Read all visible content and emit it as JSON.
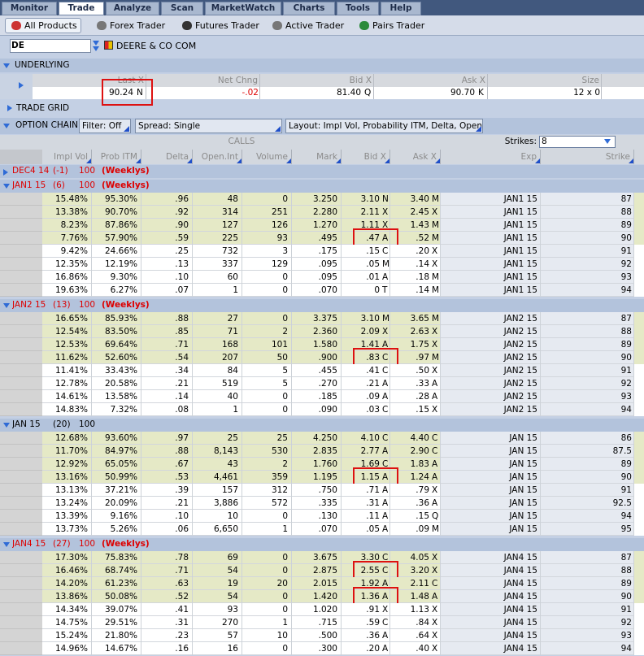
{
  "tabs": [
    "Monitor",
    "Trade",
    "Analyze",
    "Scan",
    "MarketWatch",
    "Charts",
    "Tools",
    "Help"
  ],
  "active_tab": 1,
  "toolbar": [
    "All Products",
    "Forex Trader",
    "Futures Trader",
    "Active Trader",
    "Pairs Trader"
  ],
  "symbol": "DE",
  "company": "DEERE & CO COM",
  "underlying": {
    "title": "UNDERLYING",
    "columns": [
      "Last X",
      "Net Chng",
      "Bid X",
      "Ask X",
      "Size"
    ],
    "last": "90.24",
    "last_x": "N",
    "net_change": "-.02",
    "bid": "81.40",
    "bid_x": "Q",
    "ask": "90.70",
    "ask_x": "K",
    "size": "12 x 0"
  },
  "trade_grid": "TRADE GRID",
  "option_chain": {
    "title": "OPTION CHAIN",
    "filter": "Filter: Off",
    "spread": "Spread: Single",
    "layout": "Layout: Impl Vol, Probability ITM, Delta, Open ...",
    "calls": "CALLS",
    "strikes_label": "Strikes:",
    "strikes": "8"
  },
  "columns": [
    "Impl Vol",
    "Prob ITM",
    "Delta",
    "Open.Int",
    "Volume",
    "Mark",
    "Bid X",
    "Ask X",
    "Exp",
    "Strike"
  ],
  "groups": [
    {
      "label": "DEC4 14",
      "days": "(-1)",
      "multiplier": "100",
      "weeklys": "(Weeklys)",
      "expanded": false,
      "rows": [],
      "highlighted_rows": []
    },
    {
      "label": "JAN1 15",
      "days": "(6)",
      "multiplier": "100",
      "weeklys": "(Weeklys)",
      "expanded": true,
      "highlighted_rows": [
        3
      ],
      "rows": [
        [
          "15.48%",
          "95.30%",
          ".96",
          "48",
          "0",
          "3.250",
          "3.10",
          "N",
          "3.40",
          "M",
          "JAN1 15",
          "87"
        ],
        [
          "13.38%",
          "90.70%",
          ".92",
          "314",
          "251",
          "2.280",
          "2.11",
          "X",
          "2.45",
          "X",
          "JAN1 15",
          "88"
        ],
        [
          "8.23%",
          "87.86%",
          ".90",
          "127",
          "126",
          "1.270",
          "1.11",
          "X",
          "1.43",
          "M",
          "JAN1 15",
          "89"
        ],
        [
          "7.76%",
          "57.90%",
          ".59",
          "225",
          "93",
          ".495",
          ".47",
          "A",
          ".52",
          "M",
          "JAN1 15",
          "90"
        ],
        [
          "9.42%",
          "24.66%",
          ".25",
          "732",
          "3",
          ".175",
          ".15",
          "C",
          ".20",
          "X",
          "JAN1 15",
          "91"
        ],
        [
          "12.35%",
          "12.19%",
          ".13",
          "337",
          "129",
          ".095",
          ".05",
          "M",
          ".14",
          "X",
          "JAN1 15",
          "92"
        ],
        [
          "16.86%",
          "9.30%",
          ".10",
          "60",
          "0",
          ".095",
          ".01",
          "A",
          ".18",
          "M",
          "JAN1 15",
          "93"
        ],
        [
          "19.63%",
          "6.27%",
          ".07",
          "1",
          "0",
          ".070",
          "0",
          "T",
          ".14",
          "M",
          "JAN1 15",
          "94"
        ]
      ]
    },
    {
      "label": "JAN2 15",
      "days": "(13)",
      "multiplier": "100",
      "weeklys": "(Weeklys)",
      "expanded": true,
      "highlighted_rows": [
        3
      ],
      "rows": [
        [
          "16.65%",
          "85.93%",
          ".88",
          "27",
          "0",
          "3.375",
          "3.10",
          "M",
          "3.65",
          "M",
          "JAN2 15",
          "87"
        ],
        [
          "12.54%",
          "83.50%",
          ".85",
          "71",
          "2",
          "2.360",
          "2.09",
          "X",
          "2.63",
          "X",
          "JAN2 15",
          "88"
        ],
        [
          "12.53%",
          "69.64%",
          ".71",
          "168",
          "101",
          "1.580",
          "1.41",
          "A",
          "1.75",
          "X",
          "JAN2 15",
          "89"
        ],
        [
          "11.62%",
          "52.60%",
          ".54",
          "207",
          "50",
          ".900",
          ".83",
          "C",
          ".97",
          "M",
          "JAN2 15",
          "90"
        ],
        [
          "11.41%",
          "33.43%",
          ".34",
          "84",
          "5",
          ".455",
          ".41",
          "C",
          ".50",
          "X",
          "JAN2 15",
          "91"
        ],
        [
          "12.78%",
          "20.58%",
          ".21",
          "519",
          "5",
          ".270",
          ".21",
          "A",
          ".33",
          "A",
          "JAN2 15",
          "92"
        ],
        [
          "14.61%",
          "13.58%",
          ".14",
          "40",
          "0",
          ".185",
          ".09",
          "A",
          ".28",
          "A",
          "JAN2 15",
          "93"
        ],
        [
          "14.83%",
          "7.32%",
          ".08",
          "1",
          "0",
          ".090",
          ".03",
          "C",
          ".15",
          "X",
          "JAN2 15",
          "94"
        ]
      ]
    },
    {
      "label": "JAN 15",
      "days": "(20)",
      "multiplier": "100",
      "expanded": true,
      "highlighted_rows": [
        3
      ],
      "rows": [
        [
          "12.68%",
          "93.60%",
          ".97",
          "25",
          "25",
          "4.250",
          "4.10",
          "C",
          "4.40",
          "C",
          "JAN 15",
          "86"
        ],
        [
          "11.70%",
          "84.97%",
          ".88",
          "8,143",
          "530",
          "2.835",
          "2.77",
          "A",
          "2.90",
          "C",
          "JAN 15",
          "87.5"
        ],
        [
          "12.92%",
          "65.05%",
          ".67",
          "43",
          "2",
          "1.760",
          "1.69",
          "C",
          "1.83",
          "A",
          "JAN 15",
          "89"
        ],
        [
          "13.16%",
          "50.99%",
          ".53",
          "4,461",
          "359",
          "1.195",
          "1.15",
          "A",
          "1.24",
          "A",
          "JAN 15",
          "90"
        ],
        [
          "13.13%",
          "37.21%",
          ".39",
          "157",
          "312",
          ".750",
          ".71",
          "A",
          ".79",
          "X",
          "JAN 15",
          "91"
        ],
        [
          "13.24%",
          "20.09%",
          ".21",
          "3,886",
          "572",
          ".335",
          ".31",
          "A",
          ".36",
          "A",
          "JAN 15",
          "92.5"
        ],
        [
          "13.39%",
          "9.16%",
          ".10",
          "10",
          "0",
          ".130",
          ".11",
          "A",
          ".15",
          "Q",
          "JAN 15",
          "94"
        ],
        [
          "13.73%",
          "5.26%",
          ".06",
          "6,650",
          "1",
          ".070",
          ".05",
          "A",
          ".09",
          "M",
          "JAN 15",
          "95"
        ]
      ]
    },
    {
      "label": "JAN4 15",
      "days": "(27)",
      "multiplier": "100",
      "weeklys": "(Weeklys)",
      "expanded": true,
      "highlighted_rows": [
        1,
        3
      ],
      "rows": [
        [
          "17.30%",
          "75.83%",
          ".78",
          "69",
          "0",
          "3.675",
          "3.30",
          "C",
          "4.05",
          "X",
          "JAN4 15",
          "87"
        ],
        [
          "16.46%",
          "68.74%",
          ".71",
          "54",
          "0",
          "2.875",
          "2.55",
          "C",
          "3.20",
          "X",
          "JAN4 15",
          "88"
        ],
        [
          "14.20%",
          "61.23%",
          ".63",
          "19",
          "20",
          "2.015",
          "1.92",
          "A",
          "2.11",
          "C",
          "JAN4 15",
          "89"
        ],
        [
          "13.86%",
          "50.08%",
          ".52",
          "54",
          "0",
          "1.420",
          "1.36",
          "A",
          "1.48",
          "A",
          "JAN4 15",
          "90"
        ],
        [
          "14.34%",
          "39.07%",
          ".41",
          "93",
          "0",
          "1.020",
          ".91",
          "X",
          "1.13",
          "X",
          "JAN4 15",
          "91"
        ],
        [
          "14.75%",
          "29.51%",
          ".31",
          "270",
          "1",
          ".715",
          ".59",
          "C",
          ".84",
          "X",
          "JAN4 15",
          "92"
        ],
        [
          "15.24%",
          "21.80%",
          ".23",
          "57",
          "10",
          ".500",
          ".36",
          "A",
          ".64",
          "X",
          "JAN4 15",
          "93"
        ],
        [
          "14.96%",
          "14.67%",
          ".16",
          "16",
          "0",
          ".300",
          ".20",
          "A",
          ".40",
          "X",
          "JAN4 15",
          "94"
        ]
      ]
    }
  ]
}
